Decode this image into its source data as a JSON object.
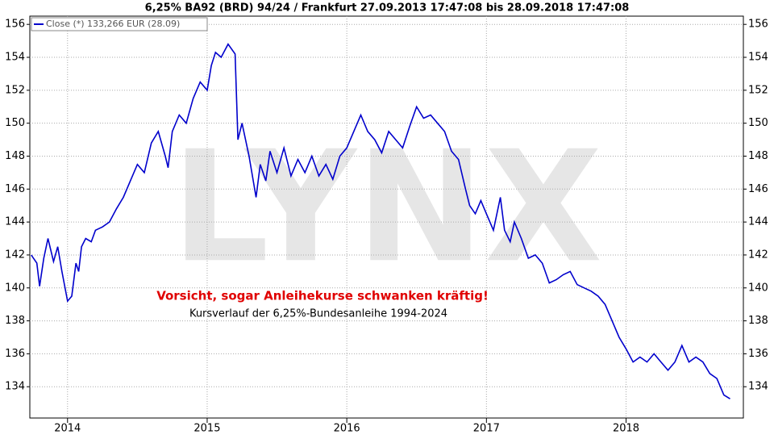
{
  "chart_data": {
    "type": "line",
    "title": "6,25% BA92 (BRD) 94/24 / Frankfurt 27.09.2013 17:47:08 bis 28.09.2018 17:47:08",
    "watermark": "LYNX",
    "annotations": [
      "Vorsicht, sogar Anleihekurse schwanken kräftig!",
      "Kursverlauf der 6,25%-Bundesanleihe 1994-2024"
    ],
    "x": [
      2013.74,
      2013.78,
      2013.8,
      2013.83,
      2013.86,
      2013.9,
      2013.93,
      2013.96,
      2014.0,
      2014.03,
      2014.06,
      2014.08,
      2014.1,
      2014.13,
      2014.17,
      2014.2,
      2014.25,
      2014.3,
      2014.35,
      2014.4,
      2014.45,
      2014.5,
      2014.55,
      2014.6,
      2014.65,
      2014.7,
      2014.72,
      2014.75,
      2014.8,
      2014.85,
      2014.9,
      2014.95,
      2015.0,
      2015.03,
      2015.06,
      2015.1,
      2015.15,
      2015.2,
      2015.22,
      2015.25,
      2015.3,
      2015.35,
      2015.38,
      2015.42,
      2015.45,
      2015.5,
      2015.55,
      2015.6,
      2015.65,
      2015.7,
      2015.75,
      2015.8,
      2015.85,
      2015.9,
      2015.95,
      2016.0,
      2016.05,
      2016.1,
      2016.15,
      2016.2,
      2016.25,
      2016.3,
      2016.35,
      2016.4,
      2016.45,
      2016.5,
      2016.55,
      2016.6,
      2016.65,
      2016.7,
      2016.75,
      2016.8,
      2016.85,
      2016.88,
      2016.92,
      2016.96,
      2017.0,
      2017.05,
      2017.1,
      2017.13,
      2017.17,
      2017.2,
      2017.25,
      2017.3,
      2017.35,
      2017.4,
      2017.45,
      2017.5,
      2017.55,
      2017.6,
      2017.65,
      2017.7,
      2017.75,
      2017.8,
      2017.85,
      2017.9,
      2017.95,
      2018.0,
      2018.05,
      2018.1,
      2018.15,
      2018.2,
      2018.25,
      2018.3,
      2018.35,
      2018.4,
      2018.45,
      2018.5,
      2018.55,
      2018.6,
      2018.65,
      2018.7,
      2018.745
    ],
    "series": [
      {
        "name": "Close (*) 133,266 EUR (28.09)",
        "color": "#0000cc",
        "values": [
          142.0,
          141.5,
          140.1,
          141.8,
          143.0,
          141.6,
          142.5,
          141.0,
          139.2,
          139.5,
          141.5,
          141.0,
          142.5,
          143.0,
          142.8,
          143.5,
          143.7,
          144.0,
          144.8,
          145.5,
          146.5,
          147.5,
          147.0,
          148.8,
          149.5,
          148.0,
          147.3,
          149.5,
          150.5,
          150.0,
          151.5,
          152.5,
          152.0,
          153.5,
          154.3,
          154.0,
          154.8,
          154.2,
          149.0,
          150.0,
          148.0,
          145.5,
          147.5,
          146.5,
          148.3,
          147.0,
          148.5,
          146.8,
          147.8,
          147.0,
          148.0,
          146.8,
          147.5,
          146.6,
          148.0,
          148.5,
          149.5,
          150.5,
          149.5,
          149.0,
          148.2,
          149.5,
          149.0,
          148.5,
          149.8,
          151.0,
          150.3,
          150.5,
          150.0,
          149.5,
          148.3,
          147.8,
          146.0,
          145.0,
          144.5,
          145.3,
          144.5,
          143.5,
          145.5,
          143.5,
          142.8,
          144.0,
          143.0,
          141.8,
          142.0,
          141.5,
          140.3,
          140.5,
          140.8,
          141.0,
          140.2,
          140.0,
          139.8,
          139.5,
          139.0,
          138.0,
          137.0,
          136.3,
          135.5,
          135.8,
          135.5,
          136.0,
          135.5,
          135.0,
          135.5,
          136.5,
          135.5,
          135.8,
          135.5,
          134.8,
          134.5,
          133.5,
          133.266
        ]
      }
    ],
    "xlim": [
      2013.73,
      2018.84
    ],
    "xticks": [
      2014,
      2015,
      2016,
      2017,
      2018
    ],
    "ylim": [
      132.1,
      156.5
    ],
    "yticks": [
      134,
      136,
      138,
      140,
      142,
      144,
      146,
      148,
      150,
      152,
      154,
      156
    ],
    "grid": true,
    "legend": "top-left"
  }
}
